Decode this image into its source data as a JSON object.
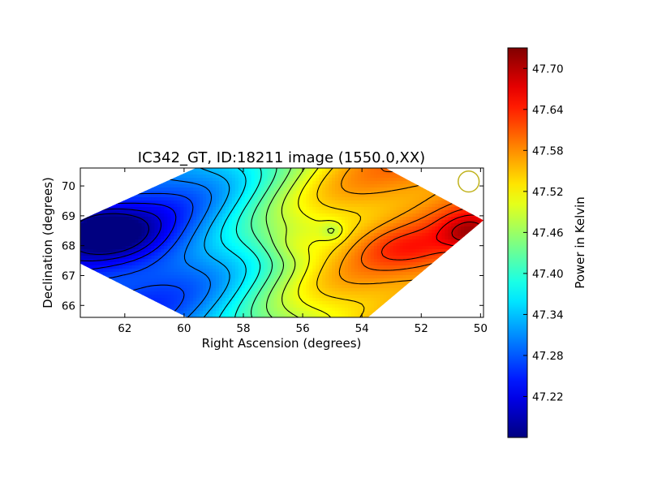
{
  "chart_data": {
    "type": "heatmap",
    "title": "IC342_GT, ID:18211 image (1550.0,XX)",
    "xlabel": "Right Ascension (degrees)",
    "ylabel": "Declination (degrees)",
    "colorbar_label": "Power in Kelvin",
    "colormap": "jet",
    "xlim": [
      63.5,
      49.9
    ],
    "ylim": [
      65.6,
      70.6
    ],
    "x_ticks": [
      62,
      60,
      58,
      56,
      54,
      52,
      50
    ],
    "x_tick_labels": [
      "62",
      "60",
      "58",
      "56",
      "54",
      "52",
      "50"
    ],
    "y_ticks": [
      66,
      67,
      68,
      69,
      70
    ],
    "y_tick_labels": [
      "66",
      "67",
      "68",
      "69",
      "70"
    ],
    "colorbar_range": [
      47.16,
      47.73
    ],
    "colorbar_ticks": [
      47.22,
      47.28,
      47.34,
      47.4,
      47.46,
      47.52,
      47.58,
      47.64,
      47.7
    ],
    "colorbar_tick_labels": [
      "47.22",
      "47.28",
      "47.34",
      "47.40",
      "47.46",
      "47.52",
      "47.58",
      "47.64",
      "47.70"
    ],
    "coverage_vertices": [
      [
        63.5,
        68.85
      ],
      [
        59.6,
        70.6
      ],
      [
        53.2,
        70.6
      ],
      [
        49.9,
        68.85
      ],
      [
        53.8,
        65.6
      ],
      [
        59.9,
        65.6
      ],
      [
        63.5,
        67.4
      ]
    ],
    "beam": {
      "ra": 50.4,
      "dec": 70.15,
      "radius_deg": 0.35,
      "color": "#c0b21c"
    },
    "sources": [
      {
        "ra": 62.8,
        "dec": 68.5,
        "sx": 0.9,
        "sy": 0.5,
        "amp": -0.12
      },
      {
        "ra": 61.5,
        "dec": 68.3,
        "sx": 1.4,
        "sy": 0.9,
        "amp": -0.05
      },
      {
        "ra": 50.3,
        "dec": 68.4,
        "sx": 0.7,
        "sy": 0.45,
        "amp": 0.1
      },
      {
        "ra": 56.3,
        "dec": 68.0,
        "sx": 0.7,
        "sy": 0.4,
        "amp": 0.04
      },
      {
        "ra": 52.5,
        "dec": 67.9,
        "sx": 1.2,
        "sy": 0.5,
        "amp": 0.04
      },
      {
        "ra": 55.0,
        "dec": 68.5,
        "sx": 0.25,
        "sy": 0.2,
        "amp": -0.04
      }
    ]
  }
}
